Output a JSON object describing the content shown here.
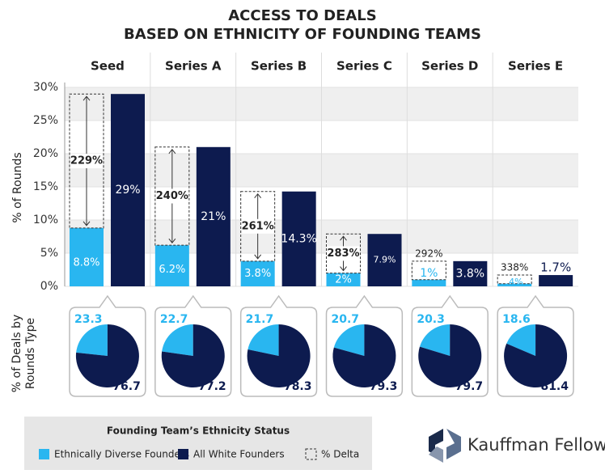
{
  "chart_data": [
    {
      "type": "bar",
      "title": "ACCESS TO DEALS",
      "subtitle": "BASED ON ETHNICITY OF FOUNDING TEAMS",
      "y_label": "% of Rounds",
      "categories": [
        "Seed",
        "Series A",
        "Series B",
        "Series C",
        "Series D",
        "Series E"
      ],
      "series": [
        {
          "name": "Ethnically Diverse Founders",
          "color": "#29b6f0",
          "values": [
            8.8,
            6.2,
            3.8,
            2,
            1,
            0.4
          ],
          "value_labels": [
            "8.8%",
            "6.2%",
            "3.8%",
            "2%",
            "1%",
            ".4%"
          ]
        },
        {
          "name": "All White Founders",
          "color": "#0d1b4f",
          "values": [
            29,
            21,
            14.3,
            7.9,
            3.8,
            1.7
          ],
          "value_labels": [
            "29%",
            "21%",
            "14.3%",
            "7.9%",
            "3.8%",
            "1.7%"
          ]
        }
      ],
      "delta": {
        "name": "% Delta",
        "values": [
          229,
          240,
          261,
          283,
          292,
          338
        ],
        "value_labels": [
          "229%",
          "240%",
          "261%",
          "283%",
          "292%",
          "338%"
        ]
      },
      "ylim": [
        0,
        30
      ],
      "yticks": [
        {
          "value": 0,
          "label": "0%"
        },
        {
          "value": 5,
          "label": "5%"
        },
        {
          "value": 10,
          "label": "10%"
        },
        {
          "value": 15,
          "label": "15%"
        },
        {
          "value": 20,
          "label": "20%"
        },
        {
          "value": 25,
          "label": "25%"
        },
        {
          "value": 30,
          "label": "30%"
        }
      ],
      "grid": true
    },
    {
      "type": "pie",
      "label": "% of Deals by Rounds Type",
      "series": [
        {
          "name": "Ethnically Diverse Founders",
          "color": "#29b6f0",
          "values": [
            23.3,
            22.7,
            21.7,
            20.7,
            20.3,
            18.6
          ]
        },
        {
          "name": "All White Founders",
          "color": "#0d1b4f",
          "values": [
            76.7,
            77.2,
            78.3,
            79.3,
            79.7,
            81.4
          ]
        }
      ]
    }
  ],
  "legend_title": "Founding Team’s Ethnicity Status",
  "brand": "Kauffman Fellows"
}
